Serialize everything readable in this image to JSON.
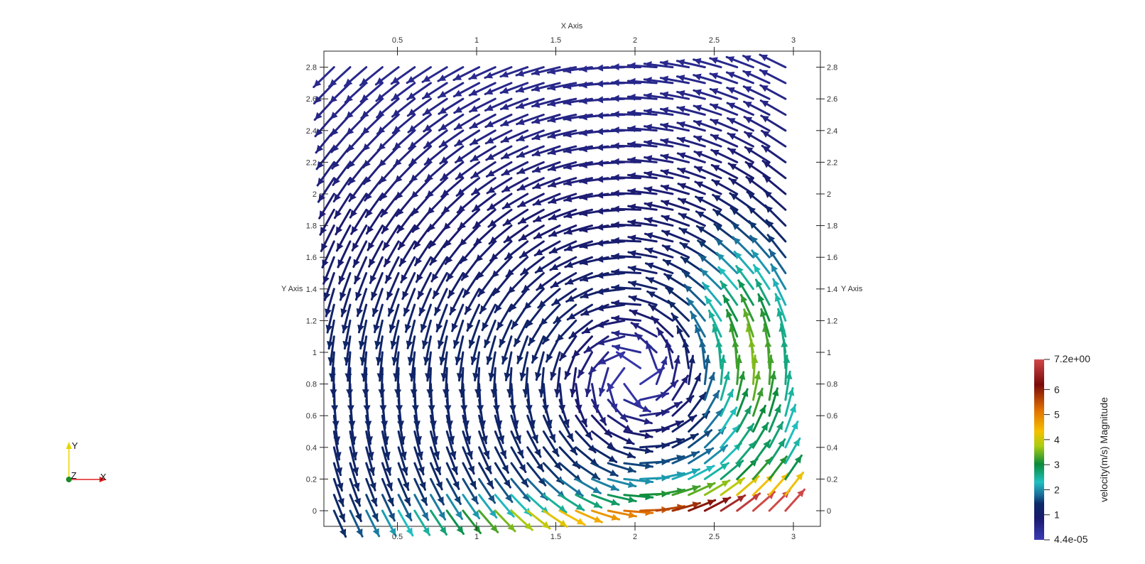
{
  "chart_data": {
    "type": "vector-field",
    "x_axis": {
      "title": "X Axis",
      "ticks": [
        0.5,
        1,
        1.5,
        2,
        2.5,
        3
      ],
      "tick_labels": [
        "0.5",
        "1",
        "1.5",
        "2",
        "2.5",
        "3"
      ],
      "range": [
        0.0,
        3.15
      ]
    },
    "y_axis": {
      "title": "Y Axis",
      "ticks": [
        0,
        0.2,
        0.4,
        0.6,
        0.8,
        1,
        1.2,
        1.4,
        1.6,
        1.8,
        2,
        2.2,
        2.4,
        2.6,
        2.8
      ],
      "tick_labels": [
        "0",
        "0.2",
        "0.4",
        "0.6",
        "0.8",
        "1",
        "1.2",
        "1.4",
        "1.6",
        "1.8",
        "2",
        "2.2",
        "2.4",
        "2.6",
        "2.8"
      ],
      "range": [
        -0.1,
        2.9
      ]
    },
    "grid": false,
    "field": {
      "description": "Lid-driven cavity style vortex; glyphs colored by velocity magnitude",
      "vortex_center": [
        2.0,
        0.85
      ],
      "x_range": [
        0.1,
        2.95
      ],
      "y_range": [
        0.0,
        2.8
      ],
      "max_magnitude": 7.2
    },
    "colorbar": {
      "title": "velocity(m/s) Magnitude",
      "min_label": "4.4e-05",
      "max_label": "7.2e+00",
      "tick_labels": [
        "6",
        "5",
        "4",
        "3",
        "2",
        "1"
      ],
      "tick_values": [
        6,
        5,
        4,
        3,
        2,
        1
      ],
      "min": 4.4e-05,
      "max": 7.2,
      "colors": [
        "#3b3bb5",
        "#1a1a6e",
        "#0c2a66",
        "#1a6e9a",
        "#20c0c0",
        "#0a8a3a",
        "#aacc10",
        "#f5c000",
        "#e07000",
        "#a01010",
        "#d04848"
      ],
      "placement": "bottom-right"
    },
    "orientation_triad": {
      "labels": [
        "Y",
        "Z",
        "X"
      ]
    }
  }
}
